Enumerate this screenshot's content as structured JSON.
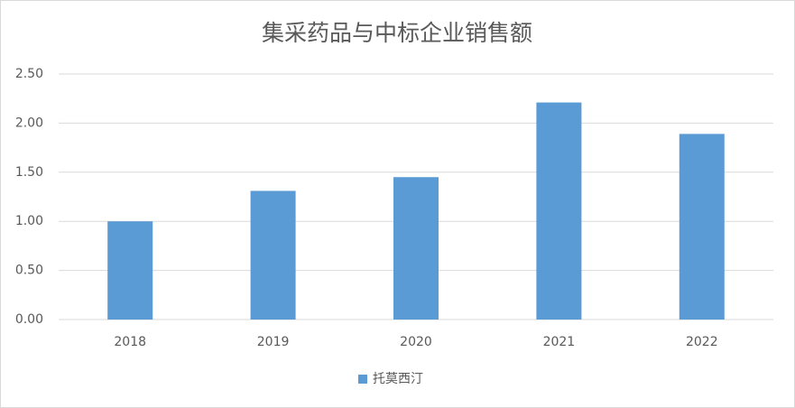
{
  "chart_data": {
    "type": "bar",
    "title": "集采药品与中标企业销售额",
    "categories": [
      "2018",
      "2019",
      "2020",
      "2021",
      "2022"
    ],
    "series": [
      {
        "name": "托莫西汀",
        "color": "#5b9bd5",
        "values": [
          1.0,
          1.31,
          1.45,
          2.21,
          1.89
        ]
      }
    ],
    "ylim": [
      0,
      2.5
    ],
    "yticks": [
      {
        "value": 0,
        "label": "0.00"
      },
      {
        "value": 0.5,
        "label": "0.50"
      },
      {
        "value": 1,
        "label": "1.00"
      },
      {
        "value": 1.5,
        "label": "1.50"
      },
      {
        "value": 2,
        "label": "2.00"
      },
      {
        "value": 2.5,
        "label": "2.50"
      }
    ],
    "grid": true,
    "legend": "bottom"
  }
}
